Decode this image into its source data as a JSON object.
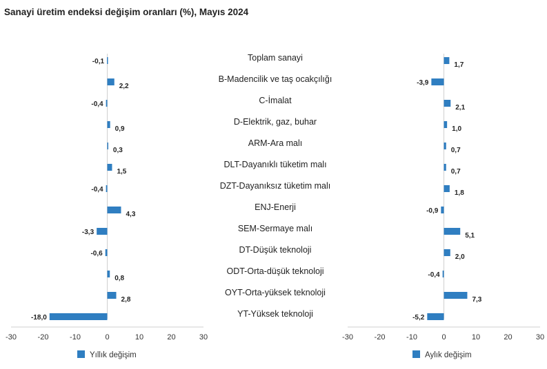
{
  "chart_data": {
    "type": "bar",
    "orientation": "horizontal",
    "title": "Sanayi üretim endeksi değişim oranları (%), Mayıs 2024",
    "categories": [
      "Toplam sanayi",
      "B-Madencilik ve taş ocakçılığı",
      "C-İmalat",
      "D-Elektrik, gaz, buhar",
      "ARM-Ara malı",
      "DLT-Dayanıklı tüketim malı",
      "DZT-Dayanıksız tüketim malı",
      "ENJ-Enerji",
      "SEM-Sermaye malı",
      "DT-Düşük teknoloji",
      "ODT-Orta-düşük teknoloji",
      "OYT-Orta-yüksek teknoloji",
      "YT-Yüksek teknoloji"
    ],
    "series": [
      {
        "name": "Yıllık değişim",
        "color": "#2f7ec1",
        "values": [
          -0.1,
          2.2,
          -0.4,
          0.9,
          0.3,
          1.5,
          -0.4,
          4.3,
          -3.3,
          -0.6,
          0.8,
          2.8,
          -18.0
        ],
        "labels": [
          "-0,1",
          "2,2",
          "-0,4",
          "0,9",
          "0,3",
          "1,5",
          "-0,4",
          "4,3",
          "-3,3",
          "-0,6",
          "0,8",
          "2,8",
          "-18,0"
        ]
      },
      {
        "name": "Aylık değişim",
        "color": "#2f7ec1",
        "values": [
          1.7,
          -3.9,
          2.1,
          1.0,
          0.7,
          0.7,
          1.8,
          -0.9,
          5.1,
          2.0,
          -0.4,
          7.3,
          -5.2
        ],
        "labels": [
          "1,7",
          "-3,9",
          "2,1",
          "1,0",
          "0,7",
          "0,7",
          "1,8",
          "-0,9",
          "5,1",
          "2,0",
          "-0,4",
          "7,3",
          "-5,2"
        ]
      }
    ],
    "xlim": [
      -30,
      30
    ],
    "ticks": [
      -30,
      -20,
      -10,
      0,
      10,
      20,
      30
    ],
    "tick_labels": [
      "-30",
      "-20",
      "-10",
      "0",
      "10",
      "20",
      "30"
    ],
    "grid": false,
    "legend_placement": "bottom"
  }
}
